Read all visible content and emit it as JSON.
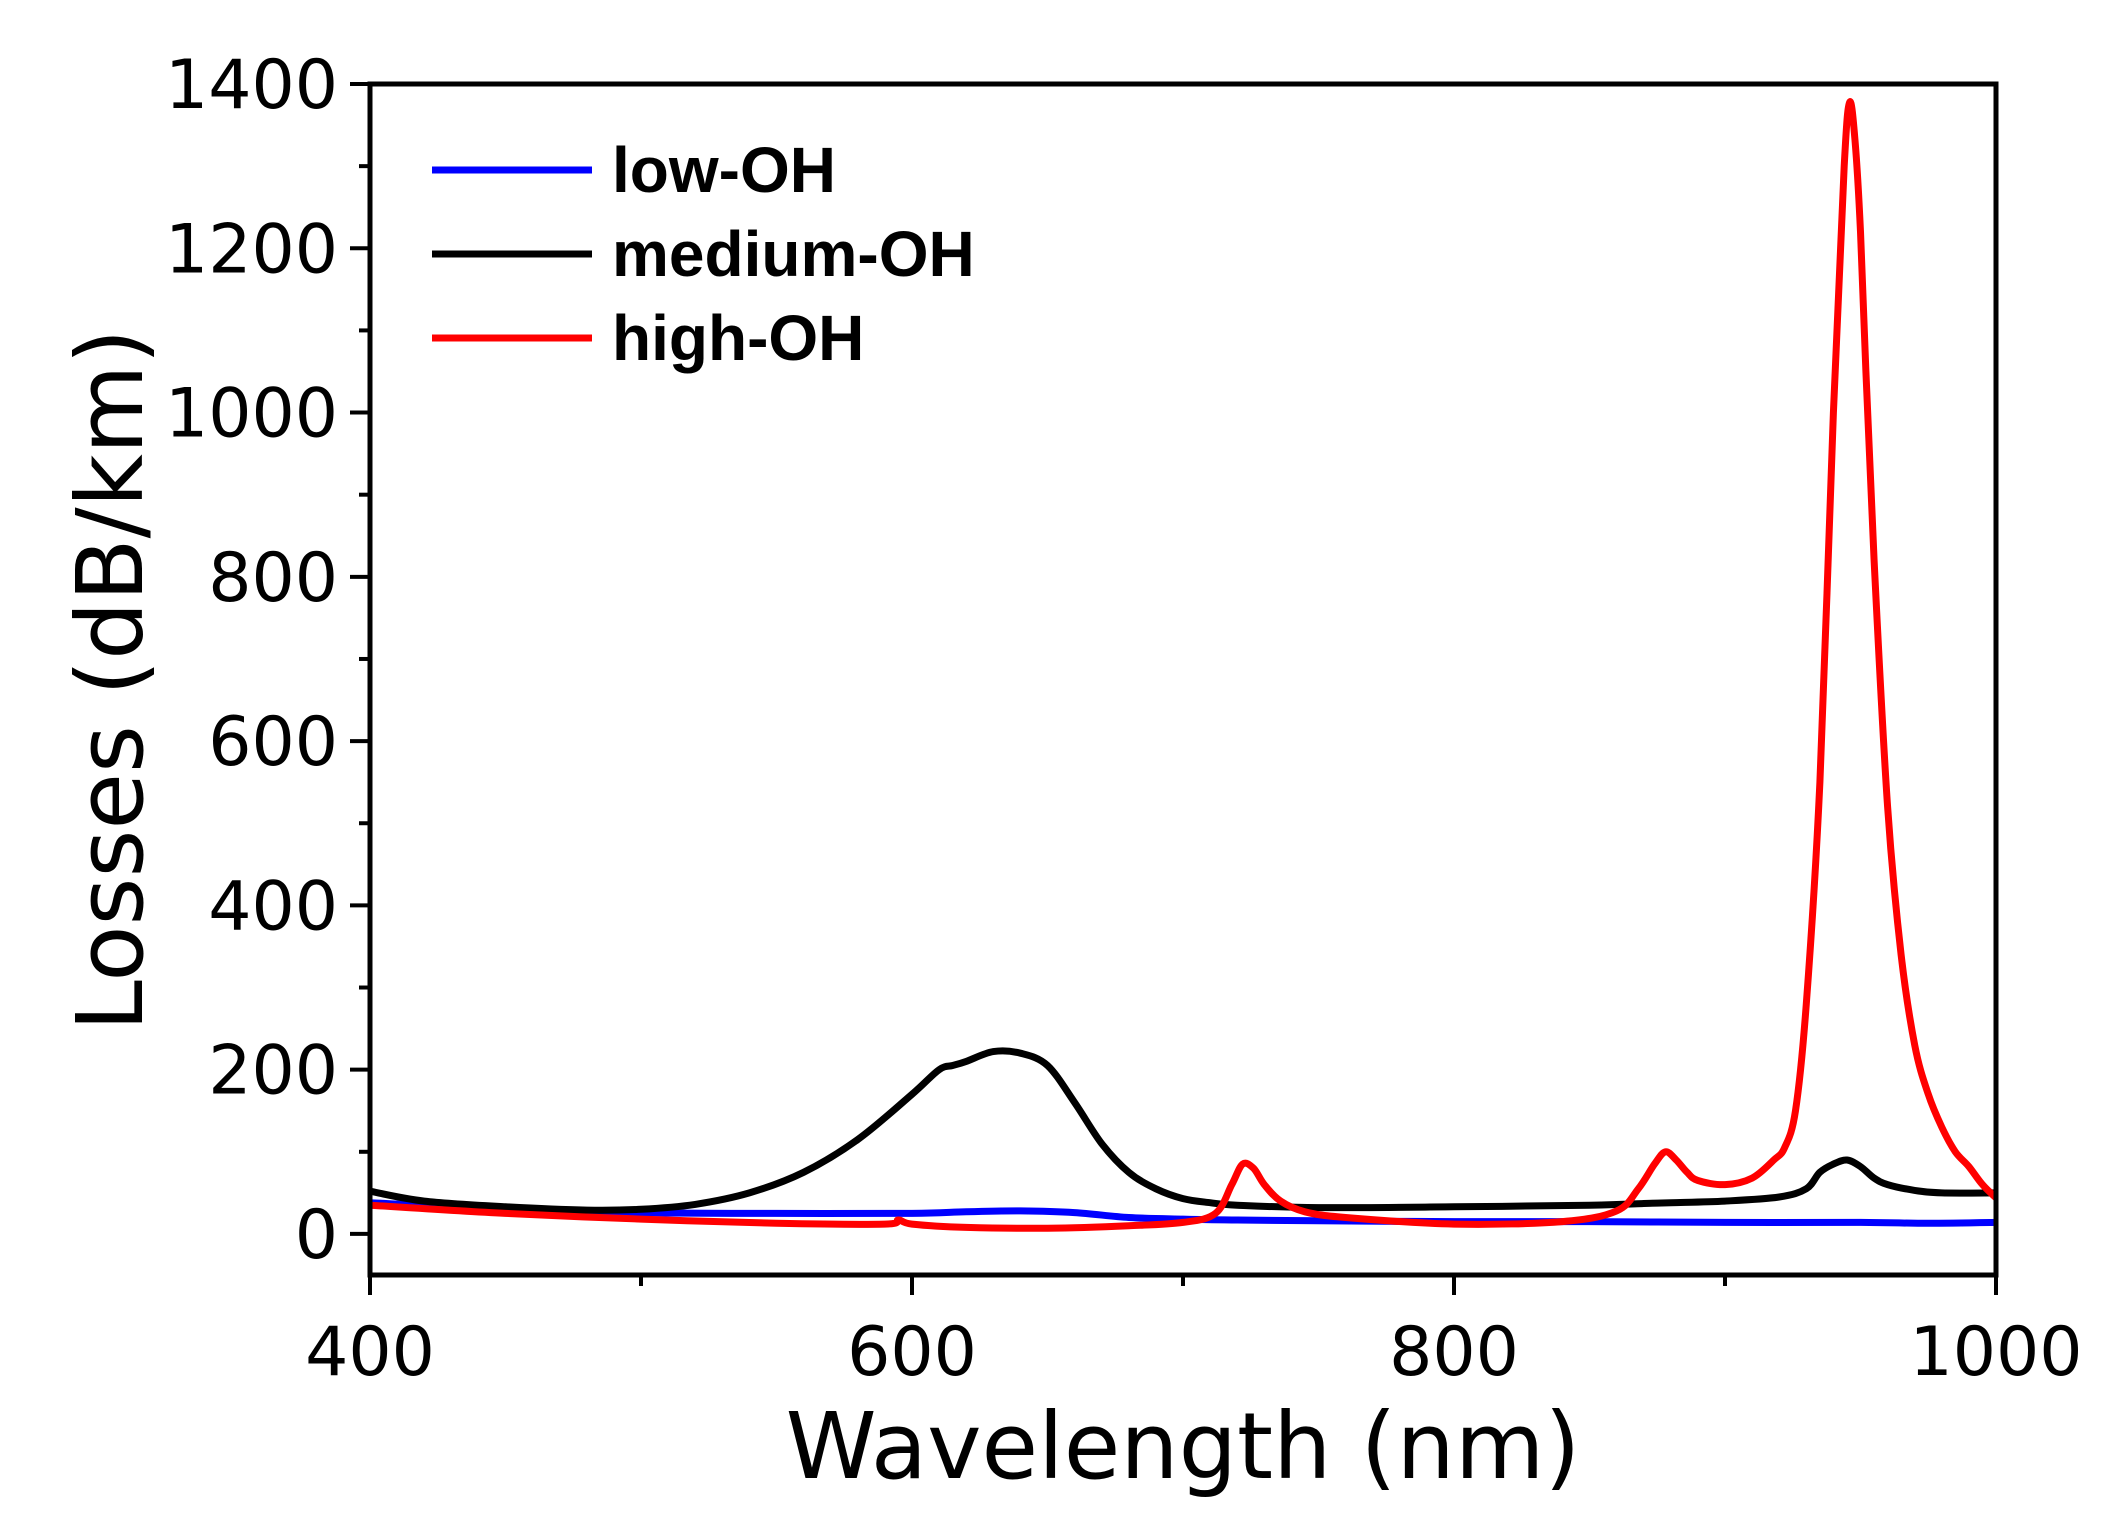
{
  "chart_data": {
    "type": "line",
    "title": "",
    "xlabel": "Wavelength (nm)",
    "ylabel": "Losses (dB/km)",
    "xlim": [
      400,
      1000
    ],
    "ylim": [
      -50,
      1400
    ],
    "xticks": [
      400,
      600,
      800,
      1000
    ],
    "xticks_minor": [
      500,
      700,
      900
    ],
    "yticks": [
      0,
      200,
      400,
      600,
      800,
      1000,
      1200,
      1400
    ],
    "yticks_minor": [
      100,
      300,
      500,
      700,
      900,
      1100,
      1300
    ],
    "grid": false,
    "legend_position": "top-left",
    "series": [
      {
        "name": "low-OH",
        "color": "#0000ff",
        "x": [
          400,
          450,
          500,
          550,
          600,
          620,
          640,
          660,
          680,
          700,
          720,
          750,
          800,
          850,
          900,
          950,
          975,
          1000
        ],
        "y": [
          38,
          30,
          26,
          25,
          25,
          27,
          28,
          26,
          20,
          18,
          17,
          16,
          15,
          15,
          14,
          14,
          13,
          14
        ]
      },
      {
        "name": "medium-OH",
        "color": "#000000",
        "x": [
          400,
          420,
          450,
          480,
          500,
          520,
          540,
          560,
          580,
          600,
          610,
          615,
          620,
          630,
          640,
          650,
          660,
          670,
          680,
          690,
          700,
          710,
          720,
          750,
          800,
          850,
          870,
          880,
          900,
          920,
          930,
          935,
          940,
          945,
          950,
          955,
          960,
          970,
          980,
          1000
        ],
        "y": [
          52,
          40,
          33,
          29,
          30,
          36,
          50,
          75,
          115,
          170,
          200,
          205,
          210,
          222,
          220,
          205,
          160,
          110,
          75,
          55,
          43,
          38,
          35,
          32,
          33,
          35,
          37,
          38,
          40,
          45,
          55,
          75,
          85,
          90,
          82,
          68,
          60,
          53,
          50,
          50
        ]
      },
      {
        "name": "high-OH",
        "color": "#ff0000",
        "x": [
          400,
          450,
          500,
          550,
          590,
          595,
          600,
          620,
          650,
          680,
          700,
          712,
          718,
          722,
          726,
          730,
          736,
          745,
          760,
          800,
          840,
          860,
          868,
          874,
          878,
          882,
          886,
          890,
          900,
          910,
          918,
          922,
          926,
          930,
          935,
          940,
          944,
          946,
          948,
          950,
          952,
          955,
          960,
          965,
          970,
          975,
          980,
          985,
          990,
          995,
          1000
        ],
        "y": [
          35,
          25,
          18,
          13,
          12,
          17,
          12,
          8,
          7,
          10,
          14,
          25,
          60,
          85,
          80,
          60,
          40,
          27,
          20,
          12,
          15,
          28,
          55,
          85,
          100,
          90,
          75,
          65,
          60,
          68,
          90,
          105,
          150,
          280,
          550,
          1000,
          1300,
          1378,
          1330,
          1220,
          1050,
          820,
          520,
          340,
          230,
          170,
          130,
          100,
          82,
          60,
          44
        ]
      }
    ]
  }
}
